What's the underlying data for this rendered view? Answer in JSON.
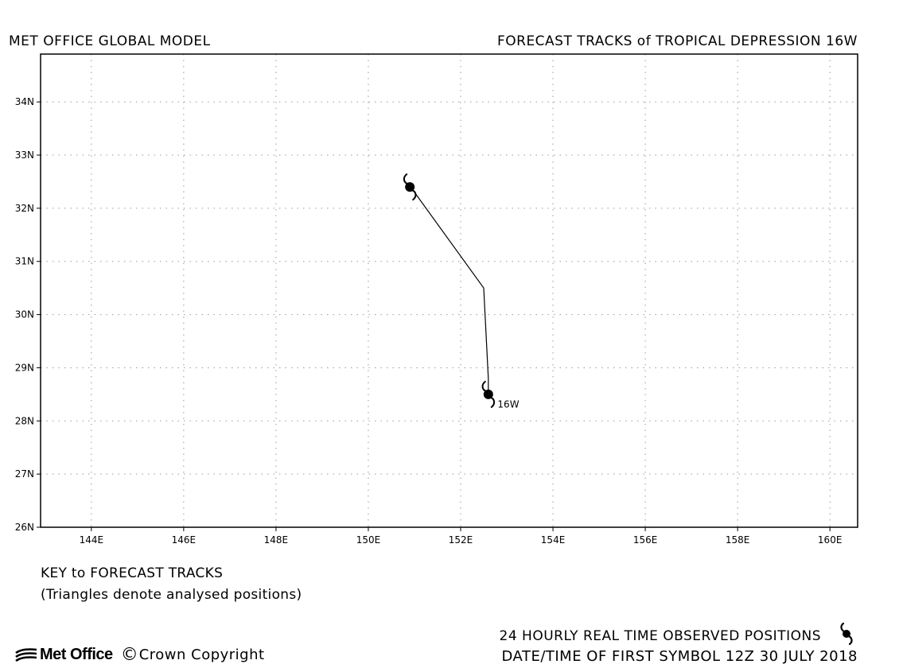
{
  "header": {
    "left_title": "MET OFFICE GLOBAL MODEL",
    "right_title": "FORECAST TRACKS of TROPICAL DEPRESSION 16W"
  },
  "map": {
    "lon_range": [
      142.9,
      160.6
    ],
    "lat_range": [
      26,
      34.9
    ],
    "lon_ticks": [
      {
        "value": 144,
        "label": "144E"
      },
      {
        "value": 146,
        "label": "146E"
      },
      {
        "value": 148,
        "label": "148E"
      },
      {
        "value": 150,
        "label": "150E"
      },
      {
        "value": 152,
        "label": "152E"
      },
      {
        "value": 154,
        "label": "154E"
      },
      {
        "value": 156,
        "label": "156E"
      },
      {
        "value": 158,
        "label": "158E"
      },
      {
        "value": 160,
        "label": "160E"
      }
    ],
    "lat_ticks": [
      {
        "value": 26,
        "label": "26N"
      },
      {
        "value": 27,
        "label": "27N"
      },
      {
        "value": 28,
        "label": "28N"
      },
      {
        "value": 29,
        "label": "29N"
      },
      {
        "value": 30,
        "label": "30N"
      },
      {
        "value": 31,
        "label": "31N"
      },
      {
        "value": 32,
        "label": "32N"
      },
      {
        "value": 33,
        "label": "33N"
      },
      {
        "value": 34,
        "label": "34N"
      }
    ],
    "grid": "dotted",
    "track": {
      "name": "16W",
      "points": [
        {
          "lon": 152.6,
          "lat": 28.5
        },
        {
          "lon": 152.6,
          "lat": 28.8
        },
        {
          "lon": 152.5,
          "lat": 30.5
        },
        {
          "lon": 151.0,
          "lat": 32.3
        },
        {
          "lon": 150.9,
          "lat": 32.4
        }
      ],
      "observed_positions": [
        {
          "lon": 152.6,
          "lat": 28.5
        },
        {
          "lon": 150.9,
          "lat": 32.4
        }
      ],
      "label": "16W",
      "label_position": {
        "lon": 152.8,
        "lat": 28.25
      }
    }
  },
  "key": {
    "title": "KEY to FORECAST TRACKS",
    "note": "(Triangles denote analysed positions)"
  },
  "legend": {
    "observed_label": "24 HOURLY REAL TIME OBSERVED POSITIONS",
    "datetime_label": "DATE/TIME OF FIRST SYMBOL 12Z 30 JULY 2018"
  },
  "footer": {
    "logo_text": "Met Office",
    "copyright_symbol": "©",
    "copyright_text": "Crown Copyright"
  }
}
